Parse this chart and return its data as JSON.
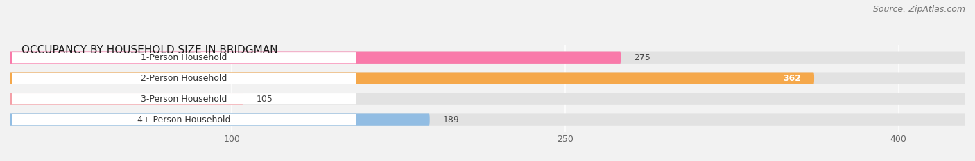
{
  "title": "OCCUPANCY BY HOUSEHOLD SIZE IN BRIDGMAN",
  "source": "Source: ZipAtlas.com",
  "categories": [
    "1-Person Household",
    "2-Person Household",
    "3-Person Household",
    "4+ Person Household"
  ],
  "values": [
    275,
    362,
    105,
    189
  ],
  "colors": [
    "#f97aaa",
    "#f5a84b",
    "#f4a0a8",
    "#92bde3"
  ],
  "value_inside": [
    false,
    true,
    false,
    false
  ],
  "xlim_max": 430,
  "xticks": [
    100,
    250,
    400
  ],
  "bar_height": 0.58,
  "background_color": "#f2f2f2",
  "bar_bg_color": "#e2e2e2",
  "label_box_color": "#ffffff",
  "figsize": [
    14.06,
    2.33
  ],
  "dpi": 100,
  "title_fontsize": 11,
  "source_fontsize": 9,
  "label_fontsize": 9,
  "value_fontsize": 9
}
